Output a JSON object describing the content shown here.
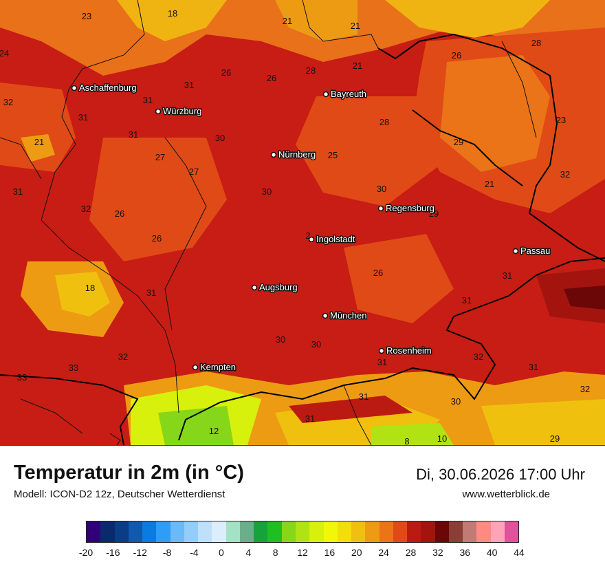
{
  "header": {
    "title": "Temperatur in 2m (in °C)",
    "model": "Modell: ICON-D2 12z, Deutscher Wetterdienst",
    "datetime": "Di, 30.06.2026 17:00 Uhr",
    "website": "www.wetterblick.de"
  },
  "cities": [
    {
      "name": "Aschaffenburg"
    },
    {
      "name": "Würzburg"
    },
    {
      "name": "Bayreuth"
    },
    {
      "name": "Nürnberg"
    },
    {
      "name": "Regensburg"
    },
    {
      "name": "Ingolstadt"
    },
    {
      "name": "Passau"
    },
    {
      "name": "Augsburg"
    },
    {
      "name": "München"
    },
    {
      "name": "Rosenheim"
    },
    {
      "name": "Kempten"
    }
  ],
  "values": [
    "23",
    "18",
    "21",
    "21",
    "24",
    "28",
    "26",
    "28",
    "21",
    "26",
    "26",
    "31",
    "28",
    "32",
    "31",
    "31",
    "23",
    "21",
    "31",
    "30",
    "29",
    "27",
    "27",
    "25",
    "21",
    "32",
    "31",
    "30",
    "30",
    "32",
    "26",
    "29",
    "26",
    "2",
    "26",
    "18",
    "31",
    "31",
    "31",
    "30",
    "30",
    "31",
    "32",
    "32",
    "31",
    "33",
    "33",
    "31",
    "30",
    "32",
    "31",
    "12",
    "8",
    "10",
    "29"
  ],
  "legend": {
    "colors": [
      "#30007a",
      "#0a2a6e",
      "#0b3d87",
      "#0f5aaf",
      "#0a7be0",
      "#2f9cf5",
      "#6ab9f8",
      "#93cdfa",
      "#bfe0fb",
      "#dcedfc",
      "#a3e2c4",
      "#6aae8a",
      "#17a33b",
      "#1fbf22",
      "#86d61a",
      "#b1e314",
      "#d7f00c",
      "#f1f807",
      "#f3dd0a",
      "#f0c00e",
      "#ee9b14",
      "#ea7417",
      "#e04a16",
      "#bb1a12",
      "#a3140f",
      "#6b0707",
      "#8b3e36",
      "#c17b74",
      "#ff8a82",
      "#ffa3b8",
      "#e0529b"
    ],
    "ticks": [
      "-20",
      "-16",
      "-12",
      "-8",
      "-4",
      "0",
      "4",
      "8",
      "12",
      "16",
      "20",
      "24",
      "28",
      "32",
      "36",
      "40",
      "44"
    ]
  }
}
